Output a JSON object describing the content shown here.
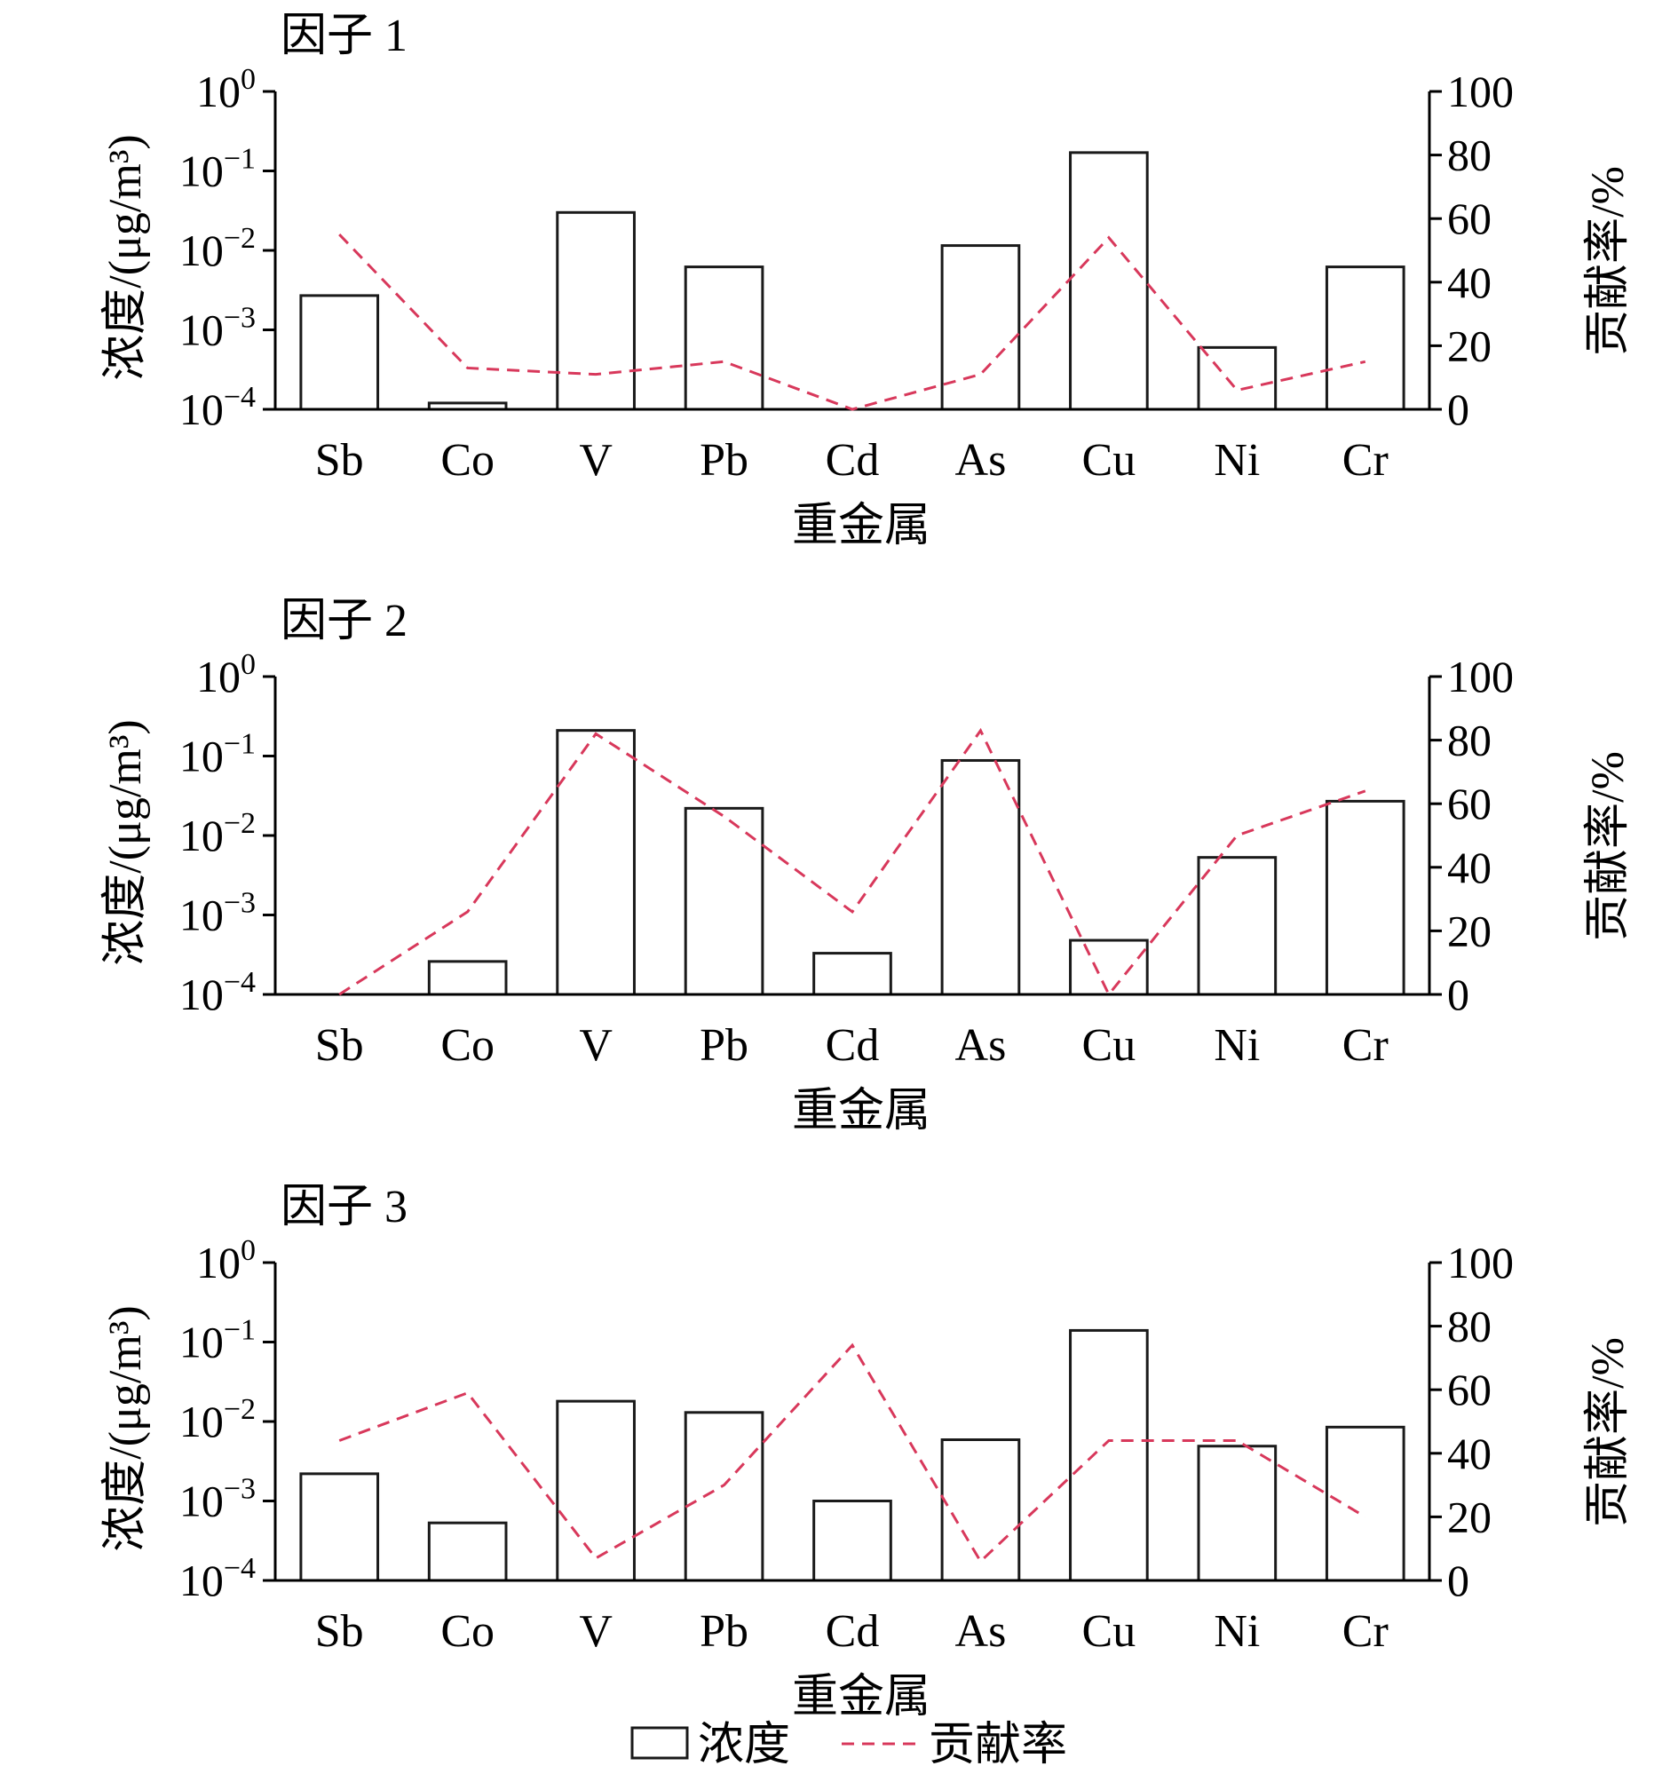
{
  "colors": {
    "bar_stroke": "#1a1a1a",
    "bar_fill": "#ffffff",
    "line": "#d8385b",
    "axis": "#000000"
  },
  "legend": {
    "concentration_label": "浓度",
    "contribution_label": "贡献率"
  },
  "chart_data": [
    {
      "type": "bar",
      "title": "因子 1",
      "xlabel": "重金属",
      "ylabel": "浓度/(μg/m³)",
      "ylabel_right": "贡献率/%",
      "categories": [
        "Sb",
        "Co",
        "V",
        "Pb",
        "Cd",
        "As",
        "Cu",
        "Ni",
        "Cr"
      ],
      "y_scale": "log",
      "ylim": [
        0.0001,
        1
      ],
      "y_ticks": [
        {
          "value": 0.0001,
          "base": "10",
          "exp": "−4"
        },
        {
          "value": 0.001,
          "base": "10",
          "exp": "−3"
        },
        {
          "value": 0.01,
          "base": "10",
          "exp": "−2"
        },
        {
          "value": 0.1,
          "base": "10",
          "exp": "−1"
        },
        {
          "value": 1,
          "base": "10",
          "exp": "0"
        }
      ],
      "y2lim": [
        0,
        100
      ],
      "y2_ticks": [
        "0",
        "20",
        "40",
        "60",
        "80",
        "100"
      ],
      "series": [
        {
          "name": "浓度",
          "type": "bar",
          "values": [
            0.0027,
            0.00012,
            0.03,
            0.0062,
            0.0001,
            0.0115,
            0.17,
            0.0006,
            0.0062
          ]
        },
        {
          "name": "贡献率",
          "type": "line",
          "axis": "right",
          "values": [
            55,
            13,
            11,
            15,
            0,
            11,
            54,
            6,
            15
          ]
        }
      ]
    },
    {
      "type": "bar",
      "title": "因子 2",
      "xlabel": "重金属",
      "ylabel": "浓度/(μg/m³)",
      "ylabel_right": "贡献率/%",
      "categories": [
        "Sb",
        "Co",
        "V",
        "Pb",
        "Cd",
        "As",
        "Cu",
        "Ni",
        "Cr"
      ],
      "y_scale": "log",
      "ylim": [
        0.0001,
        1
      ],
      "y_ticks": [
        {
          "value": 0.0001,
          "base": "10",
          "exp": "−4"
        },
        {
          "value": 0.001,
          "base": "10",
          "exp": "−3"
        },
        {
          "value": 0.01,
          "base": "10",
          "exp": "−2"
        },
        {
          "value": 0.1,
          "base": "10",
          "exp": "−1"
        },
        {
          "value": 1,
          "base": "10",
          "exp": "0"
        }
      ],
      "y2lim": [
        0,
        100
      ],
      "y2_ticks": [
        "0",
        "20",
        "40",
        "60",
        "80",
        "100"
      ],
      "series": [
        {
          "name": "浓度",
          "type": "bar",
          "values": [
            0.0001,
            0.00026,
            0.21,
            0.022,
            0.00033,
            0.088,
            0.00048,
            0.0053,
            0.027
          ]
        },
        {
          "name": "贡献率",
          "type": "line",
          "axis": "right",
          "values": [
            0,
            26,
            82,
            56,
            26,
            83,
            0,
            50,
            64
          ]
        }
      ]
    },
    {
      "type": "bar",
      "title": "因子 3",
      "xlabel": "重金属",
      "ylabel": "浓度/(μg/m³)",
      "ylabel_right": "贡献率/%",
      "categories": [
        "Sb",
        "Co",
        "V",
        "Pb",
        "Cd",
        "As",
        "Cu",
        "Ni",
        "Cr"
      ],
      "y_scale": "log",
      "ylim": [
        0.0001,
        1
      ],
      "y_ticks": [
        {
          "value": 0.0001,
          "base": "10",
          "exp": "−4"
        },
        {
          "value": 0.001,
          "base": "10",
          "exp": "−3"
        },
        {
          "value": 0.01,
          "base": "10",
          "exp": "−2"
        },
        {
          "value": 0.1,
          "base": "10",
          "exp": "−1"
        },
        {
          "value": 1,
          "base": "10",
          "exp": "0"
        }
      ],
      "y2lim": [
        0,
        100
      ],
      "y2_ticks": [
        "0",
        "20",
        "40",
        "60",
        "80",
        "100"
      ],
      "series": [
        {
          "name": "浓度",
          "type": "bar",
          "values": [
            0.0022,
            0.00053,
            0.018,
            0.013,
            0.001,
            0.0059,
            0.14,
            0.0049,
            0.0085
          ]
        },
        {
          "name": "贡献率",
          "type": "line",
          "axis": "right",
          "values": [
            44,
            59,
            7,
            30,
            74,
            6,
            44,
            44,
            20
          ]
        }
      ]
    }
  ]
}
